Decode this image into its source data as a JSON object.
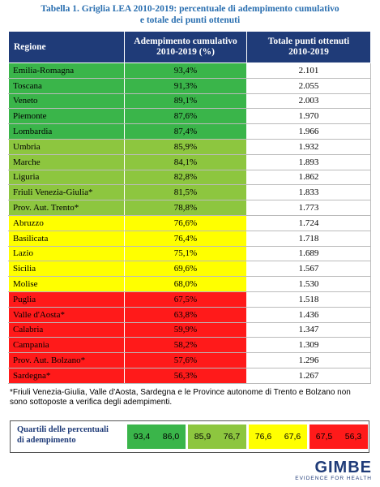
{
  "header": {
    "title": [
      "Tabella 1. Griglia LEA 2010-2019: percentuale di adempimento cumulativo",
      "e totale dei punti ottenuti"
    ]
  },
  "table": {
    "columns": [
      [
        "Regione"
      ],
      [
        "Adempimento cumulativo",
        "2010-2019 (%)"
      ],
      [
        "Totale punti ottenuti",
        "2010-2019"
      ]
    ],
    "rows": [
      [
        "Emilia-Romagna",
        "93,4%",
        "2.101",
        "#3ab54a"
      ],
      [
        "Toscana",
        "91,3%",
        "2.055",
        "#3ab54a"
      ],
      [
        "Veneto",
        "89,1%",
        "2.003",
        "#3ab54a"
      ],
      [
        "Piemonte",
        "87,6%",
        "1.970",
        "#3ab54a"
      ],
      [
        "Lombardia",
        "87,4%",
        "1.966",
        "#3ab54a"
      ],
      [
        "Umbria",
        "85,9%",
        "1.932",
        "#8dc63f"
      ],
      [
        "Marche",
        "84,1%",
        "1.893",
        "#8dc63f"
      ],
      [
        "Liguria",
        "82,8%",
        "1.862",
        "#8dc63f"
      ],
      [
        "Friuli Venezia-Giulia*",
        "81,5%",
        "1.833",
        "#8dc63f"
      ],
      [
        "Prov. Aut. Trento*",
        "78,8%",
        "1.773",
        "#8dc63f"
      ],
      [
        "Abruzzo",
        "76,6%",
        "1.724",
        "#ffff00"
      ],
      [
        "Basilicata",
        "76,4%",
        "1.718",
        "#ffff00"
      ],
      [
        "Lazio",
        "75,1%",
        "1.689",
        "#ffff00"
      ],
      [
        "Sicilia",
        "69,6%",
        "1.567",
        "#ffff00"
      ],
      [
        "Molise",
        "68,0%",
        "1.530",
        "#ffff00"
      ],
      [
        "Puglia",
        "67,5%",
        "1.518",
        "#ff1a1a"
      ],
      [
        "Valle d'Aosta*",
        "63,8%",
        "1.436",
        "#ff1a1a"
      ],
      [
        "Calabria",
        "59,9%",
        "1.347",
        "#ff1a1a"
      ],
      [
        "Campania",
        "58,2%",
        "1.309",
        "#ff1a1a"
      ],
      [
        "Prov. Aut. Bolzano*",
        "57,6%",
        "1.296",
        "#ff1a1a"
      ],
      [
        "Sardegna*",
        "56,3%",
        "1.267",
        "#ff1a1a"
      ]
    ]
  },
  "note": "*Friuli Venezia-Giulia, Valle d'Aosta, Sardegna e le Province autonome di Trento e Bolzano non sono sottoposte a verifica degli adempimenti.",
  "legend": {
    "label": [
      "Quartili delle percentuali",
      "di adempimento"
    ],
    "quartiles": [
      [
        "93,4",
        "86,0",
        "#3ab54a"
      ],
      [
        "85,9",
        "76,7",
        "#8dc63f"
      ],
      [
        "76,6",
        "67,6",
        "#ffff00"
      ],
      [
        "67,5",
        "56,3",
        "#ff1a1a"
      ]
    ]
  },
  "logo": {
    "name": "GIMBE",
    "tagline": "EVIDENCE FOR HEALTH"
  }
}
